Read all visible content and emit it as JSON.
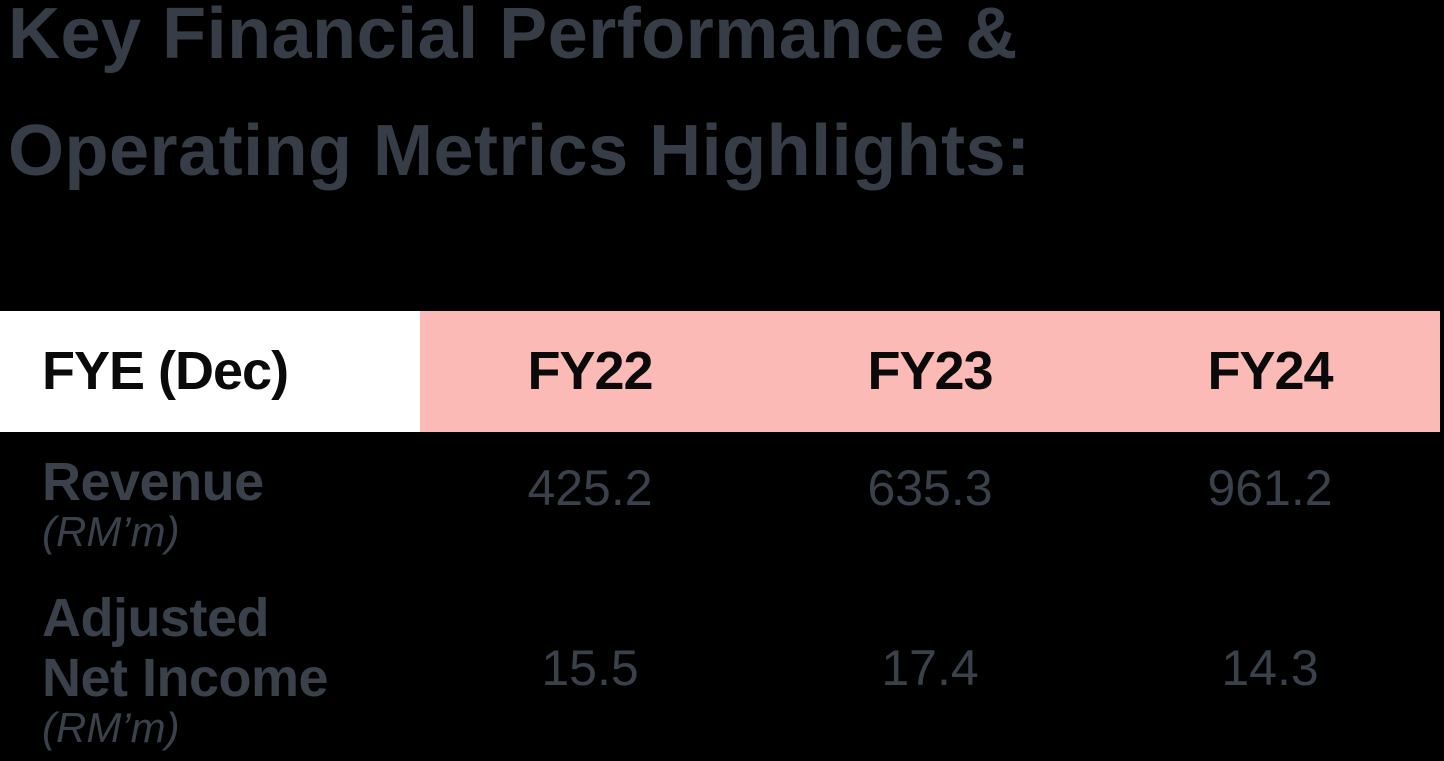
{
  "title": {
    "line1": "Key Financial Performance &",
    "line2": "Operating Metrics Highlights:"
  },
  "table": {
    "header": {
      "fiscal_year_label": "FYE (Dec)",
      "columns": [
        "FY22",
        "FY23",
        "FY24"
      ]
    },
    "rows": [
      {
        "metric": "Revenue",
        "name_lines": [
          "Revenue"
        ],
        "unit": "(RM’m)",
        "values": [
          "425.2",
          "635.3",
          "961.2"
        ]
      },
      {
        "metric": "Adjusted Net Income",
        "name_lines": [
          "Adjusted",
          "Net Income"
        ],
        "unit": "(RM’m)",
        "values": [
          "15.5",
          "17.4",
          "14.3"
        ]
      }
    ]
  },
  "colors": {
    "background": "#000000",
    "title_text": "#373d47",
    "body_text": "#3a414b",
    "header_highlight_bg": "#fcbab6",
    "header_label_bg": "#ffffff",
    "header_text": "#0a0a0a"
  }
}
